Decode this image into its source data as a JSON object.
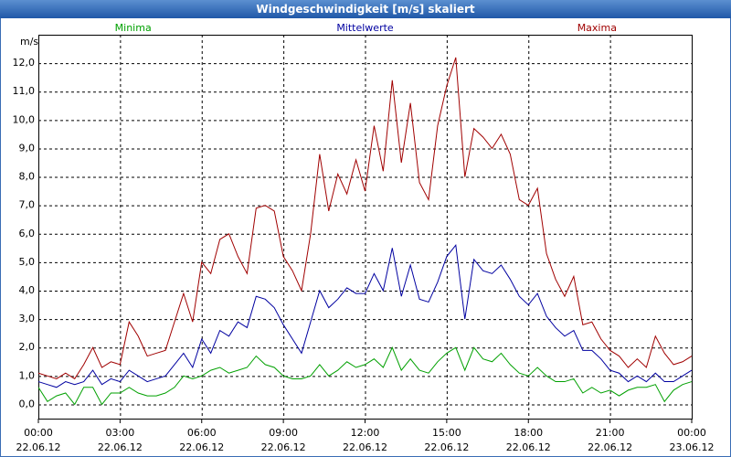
{
  "chart_data": {
    "type": "line",
    "title": "Windgeschwindigkeit [m/s] skaliert",
    "y_label": "m/s",
    "x": [
      0,
      20,
      40,
      60,
      80,
      100,
      120,
      140,
      160,
      180,
      200,
      220,
      240,
      260,
      280,
      300,
      320,
      340,
      360,
      380,
      400,
      420,
      440,
      460,
      480,
      500,
      520,
      540,
      560,
      580,
      600,
      620,
      640,
      660,
      680,
      700,
      720,
      740,
      760,
      780,
      800,
      820,
      840,
      860,
      880,
      900,
      920,
      940,
      960,
      980,
      1000,
      1020,
      1040,
      1060,
      1080,
      1100,
      1120,
      1140,
      1160,
      1180,
      1200,
      1220,
      1240,
      1260,
      1280,
      1300,
      1320,
      1340,
      1360,
      1380,
      1400,
      1420,
      1440
    ],
    "series": [
      {
        "name": "Minima",
        "color": "#00a000",
        "values": [
          0.6,
          0.1,
          0.3,
          0.4,
          0.0,
          0.6,
          0.6,
          0.0,
          0.4,
          0.4,
          0.6,
          0.4,
          0.3,
          0.3,
          0.4,
          0.6,
          1.0,
          0.9,
          1.0,
          1.2,
          1.3,
          1.1,
          1.2,
          1.3,
          1.7,
          1.4,
          1.3,
          1.0,
          0.9,
          0.9,
          1.0,
          1.4,
          1.0,
          1.2,
          1.5,
          1.3,
          1.4,
          1.6,
          1.3,
          2.0,
          1.2,
          1.6,
          1.2,
          1.1,
          1.5,
          1.8,
          2.0,
          1.2,
          2.0,
          1.6,
          1.5,
          1.8,
          1.4,
          1.1,
          1.0,
          1.3,
          1.0,
          0.8,
          0.8,
          0.9,
          0.4,
          0.6,
          0.4,
          0.5,
          0.3,
          0.5,
          0.6,
          0.6,
          0.7,
          0.1,
          0.5,
          0.7,
          0.8
        ]
      },
      {
        "name": "Mittelwerte",
        "color": "#0000a0",
        "values": [
          0.8,
          0.7,
          0.6,
          0.8,
          0.7,
          0.8,
          1.2,
          0.7,
          0.9,
          0.8,
          1.2,
          1.0,
          0.8,
          0.9,
          1.0,
          1.4,
          1.8,
          1.3,
          2.3,
          1.8,
          2.6,
          2.4,
          2.9,
          2.7,
          3.8,
          3.7,
          3.4,
          2.8,
          2.3,
          1.8,
          2.9,
          4.0,
          3.4,
          3.7,
          4.1,
          3.9,
          3.9,
          4.6,
          4.0,
          5.5,
          3.8,
          4.9,
          3.7,
          3.6,
          4.3,
          5.2,
          5.6,
          3.0,
          5.1,
          4.7,
          4.6,
          4.9,
          4.4,
          3.8,
          3.5,
          3.9,
          3.1,
          2.7,
          2.4,
          2.6,
          1.9,
          1.9,
          1.6,
          1.2,
          1.1,
          0.8,
          1.0,
          0.8,
          1.1,
          0.8,
          0.8,
          1.0,
          1.2
        ]
      },
      {
        "name": "Maxima",
        "color": "#a00000",
        "values": [
          1.1,
          1.0,
          0.9,
          1.1,
          0.9,
          1.4,
          2.0,
          1.3,
          1.5,
          1.4,
          2.9,
          2.4,
          1.7,
          1.8,
          1.9,
          2.9,
          3.9,
          2.9,
          5.0,
          4.6,
          5.8,
          6.0,
          5.2,
          4.6,
          6.9,
          7.0,
          6.8,
          5.2,
          4.7,
          4.0,
          6.0,
          8.8,
          6.8,
          8.1,
          7.4,
          8.6,
          7.5,
          9.8,
          8.2,
          11.4,
          8.5,
          10.6,
          7.8,
          7.2,
          9.8,
          11.2,
          12.2,
          8.0,
          9.7,
          9.4,
          9.0,
          9.5,
          8.8,
          7.2,
          7.0,
          7.6,
          5.3,
          4.4,
          3.8,
          4.5,
          2.8,
          2.9,
          2.3,
          1.9,
          1.7,
          1.3,
          1.6,
          1.3,
          2.4,
          1.8,
          1.4,
          1.5,
          1.7
        ]
      }
    ],
    "xlim": [
      0,
      1440
    ],
    "xticks": [
      {
        "value": 0,
        "label": "00:00",
        "sublabel": "22.06.12"
      },
      {
        "value": 180,
        "label": "03:00",
        "sublabel": "22.06.12"
      },
      {
        "value": 360,
        "label": "06:00",
        "sublabel": "22.06.12"
      },
      {
        "value": 540,
        "label": "09:00",
        "sublabel": "22.06.12"
      },
      {
        "value": 720,
        "label": "12:00",
        "sublabel": "22.06.12"
      },
      {
        "value": 900,
        "label": "15:00",
        "sublabel": "22.06.12"
      },
      {
        "value": 1080,
        "label": "18:00",
        "sublabel": "22.06.12"
      },
      {
        "value": 1260,
        "label": "21:00",
        "sublabel": "22.06.12"
      },
      {
        "value": 1440,
        "label": "00:00",
        "sublabel": "23.06.12"
      }
    ],
    "ylim": [
      -0.5,
      13.0
    ],
    "yticks": [
      {
        "value": 0,
        "label": "0,0"
      },
      {
        "value": 1,
        "label": "1,0"
      },
      {
        "value": 2,
        "label": "2,0"
      },
      {
        "value": 3,
        "label": "3,0"
      },
      {
        "value": 4,
        "label": "4,0"
      },
      {
        "value": 5,
        "label": "5,0"
      },
      {
        "value": 6,
        "label": "6,0"
      },
      {
        "value": 7,
        "label": "7,0"
      },
      {
        "value": 8,
        "label": "8,0"
      },
      {
        "value": 9,
        "label": "9,0"
      },
      {
        "value": 10,
        "label": "10,0"
      },
      {
        "value": 11,
        "label": "11,0"
      },
      {
        "value": 12,
        "label": "12,0"
      }
    ],
    "grid": true
  }
}
